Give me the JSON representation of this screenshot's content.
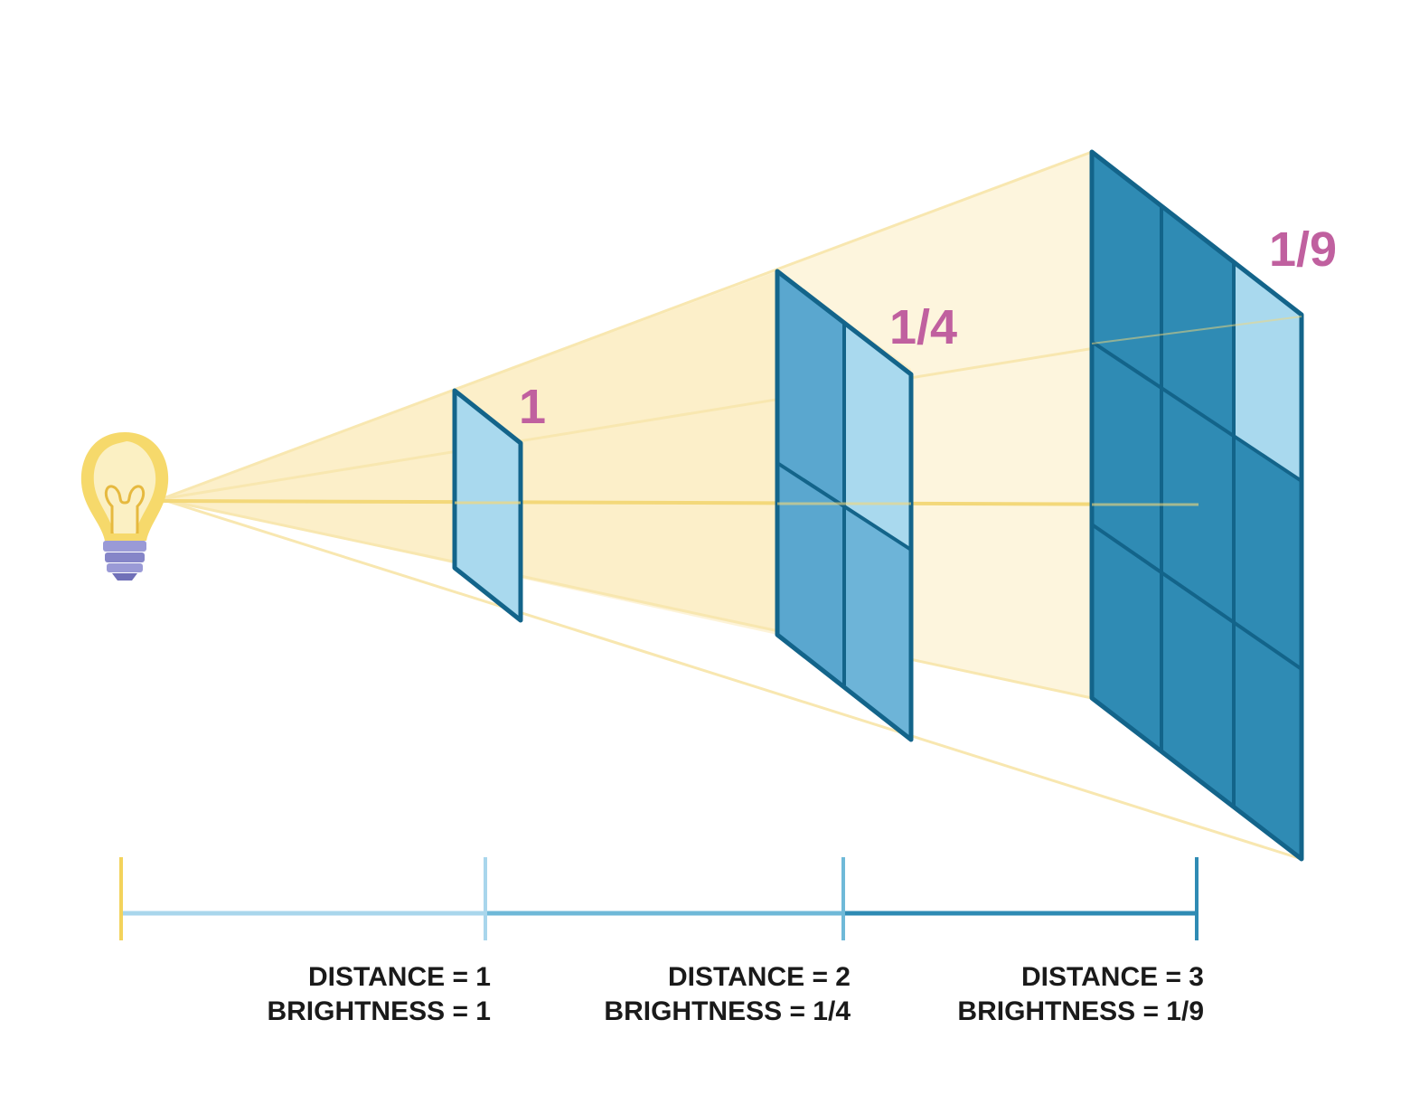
{
  "panels": [
    {
      "label": "1"
    },
    {
      "label": "1/4"
    },
    {
      "label": "1/9"
    }
  ],
  "scale": [
    {
      "distance": "DISTANCE = 1",
      "brightness": "BRIGHTNESS = 1"
    },
    {
      "distance": "DISTANCE = 2",
      "brightness": "BRIGHTNESS = 1/4"
    },
    {
      "distance": "DISTANCE = 3",
      "brightness": "BRIGHTNESS = 1/9"
    }
  ],
  "colors": {
    "light_beam": "#fbefc9",
    "bulb": "#f6d96b",
    "bulb_base": "#8f8fd0",
    "panel_dark": "#2f8bb4",
    "panel_outline": "#13648a",
    "panel_light": "#a9d9ee",
    "label_pink": "#c0609f",
    "scale_segment_1": "#a9d6ec",
    "scale_segment_2": "#6fb9d8",
    "scale_segment_3": "#2f8bb4"
  }
}
